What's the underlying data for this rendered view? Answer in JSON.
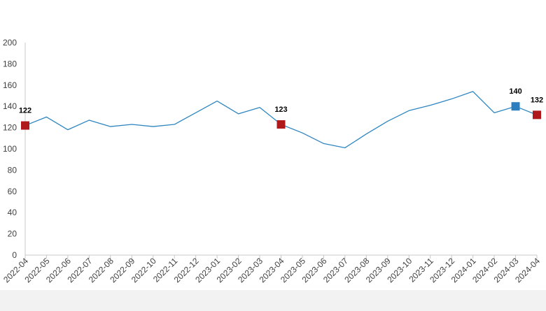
{
  "chart_data": {
    "type": "line",
    "title": "",
    "xlabel": "",
    "ylabel": "",
    "ylim": [
      0,
      200
    ],
    "yticks": [
      0,
      20,
      40,
      60,
      80,
      100,
      120,
      140,
      160,
      180,
      200
    ],
    "grid": false,
    "categories": [
      "2022-04",
      "2022-05",
      "2022-06",
      "2022-07",
      "2022-08",
      "2022-09",
      "2022-10",
      "2022-11",
      "2022-12",
      "2023-01",
      "2023-02",
      "2023-03",
      "2023-04",
      "2023-05",
      "2023-06",
      "2023-07",
      "2023-08",
      "2023-09",
      "2023-10",
      "2023-11",
      "2023-12",
      "2024-01",
      "2024-02",
      "2024-03",
      "2024-04"
    ],
    "series": [
      {
        "color": "#2e86c1",
        "values": [
          122,
          130,
          118,
          127,
          121,
          123,
          121,
          123,
          134,
          145,
          133,
          139,
          123,
          115,
          105,
          101,
          114,
          126,
          136,
          141,
          147,
          154,
          134,
          140,
          132
        ]
      }
    ],
    "markers": [
      {
        "index": 0,
        "label": "122",
        "color": "#b0191c"
      },
      {
        "index": 12,
        "label": "123",
        "color": "#b0191c"
      },
      {
        "index": 23,
        "label": "140",
        "color": "#2e7fc0"
      },
      {
        "index": 24,
        "label": "132",
        "color": "#b0191c"
      }
    ]
  }
}
